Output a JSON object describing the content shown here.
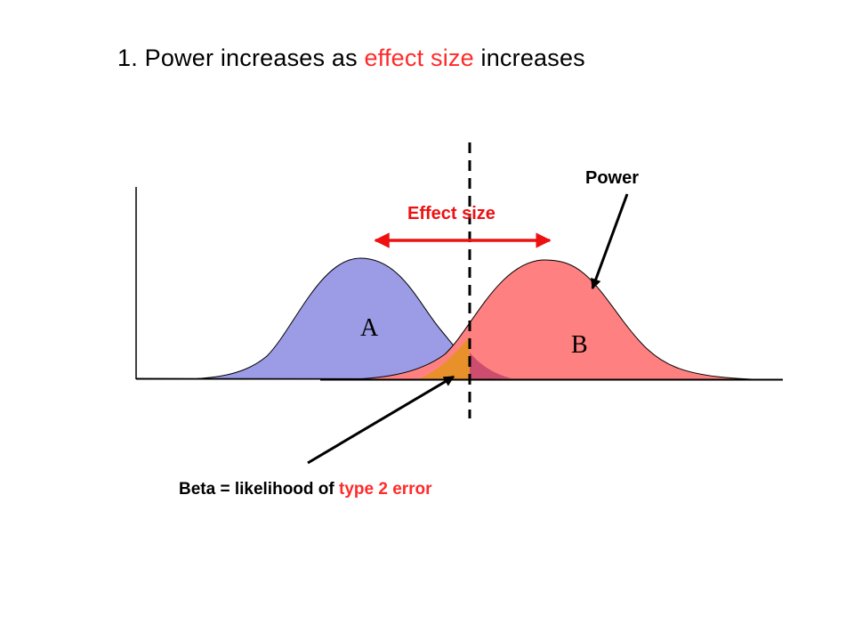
{
  "title": {
    "number": "1.",
    "part1": "Power increases as",
    "highlight": "effect size",
    "part2": "increases"
  },
  "labels": {
    "power": "Power",
    "effect_size": "Effect size",
    "dist_a": "A",
    "dist_b": "B",
    "beta_prefix": "Beta = likelihood of",
    "beta_highlight": "type 2 error"
  },
  "colors": {
    "dist_a_fill": "#9b9be6",
    "dist_b_fill": "#ff8080",
    "overlap_fill": "#e8902a",
    "highlight_red": "#ff2a2a",
    "effect_arrow": "#ee1111"
  }
}
